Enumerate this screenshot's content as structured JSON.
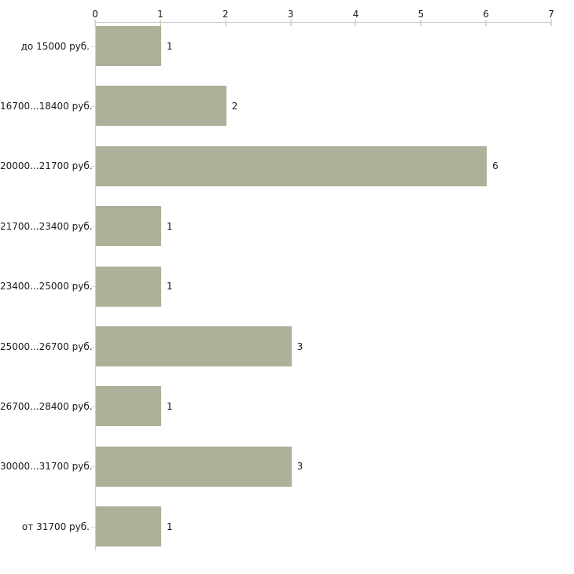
{
  "chart_data": {
    "type": "bar",
    "orientation": "horizontal",
    "title": "",
    "xlabel": "",
    "ylabel": "",
    "categories": [
      "до 15000 руб.",
      "16700...18400 руб.",
      "20000...21700 руб.",
      "21700...23400 руб.",
      "23400...25000 руб.",
      "25000...26700 руб.",
      "26700...28400 руб.",
      "30000...31700 руб.",
      "от 31700 руб."
    ],
    "values": [
      1,
      2,
      6,
      1,
      1,
      3,
      1,
      3,
      1
    ],
    "x_ticks": [
      "0",
      "1",
      "2",
      "3",
      "4",
      "5",
      "6",
      "7"
    ],
    "xlim": [
      0,
      7
    ],
    "grid": false,
    "value_labels": true,
    "legend": null,
    "colors": {
      "bar": "#acb199",
      "axis": "#cccccc",
      "tick": "#d8d8be",
      "text": "#1a1a1a",
      "background": "#ffffff"
    }
  }
}
